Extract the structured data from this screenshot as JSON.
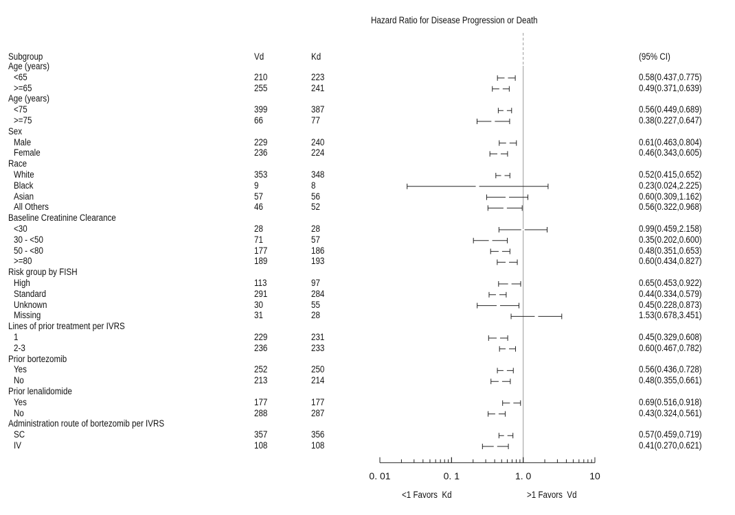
{
  "chart_data": {
    "type": "forest",
    "title": "Hazard Ratio for Disease Progression or Death",
    "columns": {
      "subgroup": "Subgroup",
      "vd": "Vd",
      "kd": "Kd",
      "ci": "(95% CI)"
    },
    "x_scale": "log",
    "xlim": [
      0.01,
      10
    ],
    "x_tick_labels": [
      "0. 01",
      "0. 1",
      "1. 0",
      "10"
    ],
    "reference_line": 1.0,
    "left_label": "<1 Favors  Kd",
    "right_label": ">1 Favors  Vd",
    "rows": [
      {
        "label": "Age (years)",
        "header": true
      },
      {
        "label": "<65",
        "vd": "210",
        "kd": "223",
        "hr": 0.58,
        "lo": 0.437,
        "hi": 0.775,
        "ci_text": "0.58(0.437,0.775)"
      },
      {
        "label": ">=65",
        "vd": "255",
        "kd": "241",
        "hr": 0.49,
        "lo": 0.371,
        "hi": 0.639,
        "ci_text": "0.49(0.371,0.639)"
      },
      {
        "label": "Age (years)",
        "header": true
      },
      {
        "label": "<75",
        "vd": "399",
        "kd": "387",
        "hr": 0.56,
        "lo": 0.449,
        "hi": 0.689,
        "ci_text": "0.56(0.449,0.689)"
      },
      {
        "label": ">=75",
        "vd": "66",
        "kd": "77",
        "hr": 0.38,
        "lo": 0.227,
        "hi": 0.647,
        "ci_text": "0.38(0.227,0.647)"
      },
      {
        "label": "Sex",
        "header": true
      },
      {
        "label": "Male",
        "vd": "229",
        "kd": "240",
        "hr": 0.61,
        "lo": 0.463,
        "hi": 0.804,
        "ci_text": "0.61(0.463,0.804)"
      },
      {
        "label": "Female",
        "vd": "236",
        "kd": "224",
        "hr": 0.46,
        "lo": 0.343,
        "hi": 0.605,
        "ci_text": "0.46(0.343,0.605)"
      },
      {
        "label": "Race",
        "header": true
      },
      {
        "label": "White",
        "vd": "353",
        "kd": "348",
        "hr": 0.52,
        "lo": 0.415,
        "hi": 0.652,
        "ci_text": "0.52(0.415,0.652)"
      },
      {
        "label": "Black",
        "vd": "9",
        "kd": "8",
        "hr": 0.23,
        "lo": 0.024,
        "hi": 2.225,
        "ci_text": "0.23(0.024,2.225)"
      },
      {
        "label": "Asian",
        "vd": "57",
        "kd": "56",
        "hr": 0.6,
        "lo": 0.309,
        "hi": 1.162,
        "ci_text": "0.60(0.309,1.162)"
      },
      {
        "label": "All Others",
        "vd": "46",
        "kd": "52",
        "hr": 0.56,
        "lo": 0.322,
        "hi": 0.968,
        "ci_text": "0.56(0.322,0.968)"
      },
      {
        "label": "Baseline Creatinine Clearance",
        "header": true
      },
      {
        "label": "<30",
        "vd": "28",
        "kd": "28",
        "hr": 0.99,
        "lo": 0.459,
        "hi": 2.158,
        "ci_text": "0.99(0.459,2.158)"
      },
      {
        "label": "30 - <50",
        "vd": "71",
        "kd": "57",
        "hr": 0.35,
        "lo": 0.202,
        "hi": 0.6,
        "ci_text": "0.35(0.202,0.600)"
      },
      {
        "label": "50 - <80",
        "vd": "177",
        "kd": "186",
        "hr": 0.48,
        "lo": 0.351,
        "hi": 0.653,
        "ci_text": "0.48(0.351,0.653)"
      },
      {
        "label": ">=80",
        "vd": "189",
        "kd": "193",
        "hr": 0.6,
        "lo": 0.434,
        "hi": 0.827,
        "ci_text": "0.60(0.434,0.827)"
      },
      {
        "label": "Risk group by FISH",
        "header": true
      },
      {
        "label": "High",
        "vd": "113",
        "kd": "97",
        "hr": 0.65,
        "lo": 0.453,
        "hi": 0.922,
        "ci_text": "0.65(0.453,0.922)"
      },
      {
        "label": "Standard",
        "vd": "291",
        "kd": "284",
        "hr": 0.44,
        "lo": 0.334,
        "hi": 0.579,
        "ci_text": "0.44(0.334,0.579)"
      },
      {
        "label": "Unknown",
        "vd": "30",
        "kd": "55",
        "hr": 0.45,
        "lo": 0.228,
        "hi": 0.873,
        "ci_text": "0.45(0.228,0.873)"
      },
      {
        "label": "Missing",
        "vd": "31",
        "kd": "28",
        "hr": 1.53,
        "lo": 0.678,
        "hi": 3.451,
        "ci_text": "1.53(0.678,3.451)"
      },
      {
        "label": "Lines of prior treatment per IVRS",
        "header": true
      },
      {
        "label": "1",
        "vd": "229",
        "kd": "231",
        "hr": 0.45,
        "lo": 0.329,
        "hi": 0.608,
        "ci_text": "0.45(0.329,0.608)"
      },
      {
        "label": "2-3",
        "vd": "236",
        "kd": "233",
        "hr": 0.6,
        "lo": 0.467,
        "hi": 0.782,
        "ci_text": "0.60(0.467,0.782)"
      },
      {
        "label": "Prior bortezomib",
        "header": true
      },
      {
        "label": "Yes",
        "vd": "252",
        "kd": "250",
        "hr": 0.56,
        "lo": 0.436,
        "hi": 0.728,
        "ci_text": "0.56(0.436,0.728)"
      },
      {
        "label": "No",
        "vd": "213",
        "kd": "214",
        "hr": 0.48,
        "lo": 0.355,
        "hi": 0.661,
        "ci_text": "0.48(0.355,0.661)"
      },
      {
        "label": "Prior lenalidomide",
        "header": true
      },
      {
        "label": "Yes",
        "vd": "177",
        "kd": "177",
        "hr": 0.69,
        "lo": 0.516,
        "hi": 0.918,
        "ci_text": "0.69(0.516,0.918)"
      },
      {
        "label": "No",
        "vd": "288",
        "kd": "287",
        "hr": 0.43,
        "lo": 0.324,
        "hi": 0.561,
        "ci_text": "0.43(0.324,0.561)"
      },
      {
        "label": "Administration route of bortezomib per IVRS",
        "header": true
      },
      {
        "label": "SC",
        "vd": "357",
        "kd": "356",
        "hr": 0.57,
        "lo": 0.459,
        "hi": 0.719,
        "ci_text": "0.57(0.459,0.719)"
      },
      {
        "label": "IV",
        "vd": "108",
        "kd": "108",
        "hr": 0.41,
        "lo": 0.27,
        "hi": 0.621,
        "ci_text": "0.41(0.270,0.621)"
      }
    ]
  }
}
